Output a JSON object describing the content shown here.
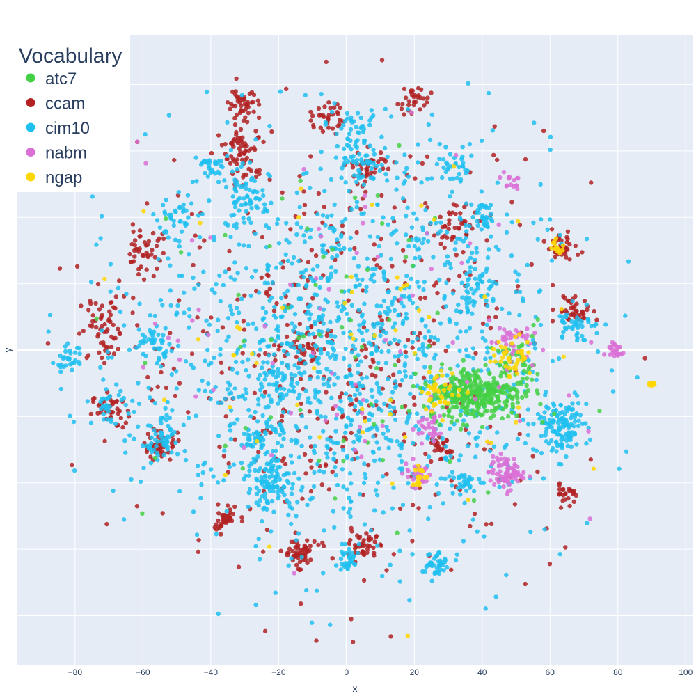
{
  "chart_data": {
    "type": "scatter",
    "title": "",
    "xlabel": "x",
    "ylabel": "y",
    "xlim": [
      -97,
      102
    ],
    "ylim": [
      -95,
      95
    ],
    "grid": true,
    "legend": {
      "title": "Vocabulary",
      "placement": "top-left"
    },
    "x_ticks": [
      -80,
      -60,
      -40,
      -20,
      0,
      20,
      40,
      60,
      80,
      100
    ],
    "x_tick_labels": [
      "−80",
      "−60",
      "−40",
      "−20",
      "0",
      "20",
      "40",
      "60",
      "80",
      "100"
    ],
    "y_ticks": [
      -80,
      -60,
      -40,
      -20,
      0,
      20,
      40,
      60,
      80
    ],
    "series": [
      {
        "name": "atc7",
        "color": "#44d044",
        "clusters": [
          {
            "cx": 38,
            "cy": -13,
            "sx": 7,
            "sy": 4,
            "n": 320
          },
          {
            "cx": 50,
            "cy": -4,
            "sx": 3,
            "sy": 3,
            "n": 40
          },
          {
            "cx": 0,
            "cy": 0,
            "sx": 30,
            "sy": 30,
            "n": 70
          }
        ]
      },
      {
        "name": "ccam",
        "color": "#b22222",
        "clusters": [
          {
            "cx": -71,
            "cy": 6,
            "sx": 4,
            "sy": 5,
            "n": 60
          },
          {
            "cx": -70,
            "cy": -18,
            "sx": 2.5,
            "sy": 2.5,
            "n": 40
          },
          {
            "cx": -30,
            "cy": 60,
            "sx": 3,
            "sy": 5,
            "n": 70
          },
          {
            "cx": -30,
            "cy": 75,
            "sx": 2.5,
            "sy": 2.5,
            "n": 40
          },
          {
            "cx": -7,
            "cy": 70,
            "sx": 2.5,
            "sy": 2.5,
            "n": 30
          },
          {
            "cx": 20,
            "cy": 75,
            "sx": 2.5,
            "sy": 2.5,
            "n": 30
          },
          {
            "cx": 32,
            "cy": 38,
            "sx": 3,
            "sy": 3,
            "n": 40
          },
          {
            "cx": 63,
            "cy": 31,
            "sx": 2,
            "sy": 2,
            "n": 40
          },
          {
            "cx": 67,
            "cy": 12,
            "sx": 2.5,
            "sy": 2.5,
            "n": 40
          },
          {
            "cx": -14,
            "cy": -61,
            "sx": 2.5,
            "sy": 2,
            "n": 60
          },
          {
            "cx": -36,
            "cy": -51,
            "sx": 2,
            "sy": 2,
            "n": 40
          },
          {
            "cx": 5,
            "cy": -59,
            "sx": 2,
            "sy": 2,
            "n": 40
          },
          {
            "cx": 65,
            "cy": -43,
            "sx": 1.5,
            "sy": 1.5,
            "n": 25
          },
          {
            "cx": -55,
            "cy": -29,
            "sx": 2.5,
            "sy": 2.5,
            "n": 40
          },
          {
            "cx": -13,
            "cy": -1,
            "sx": 3,
            "sy": 3,
            "n": 40
          },
          {
            "cx": 27,
            "cy": -30,
            "sx": 2,
            "sy": 2,
            "n": 30
          },
          {
            "cx": -60,
            "cy": 30,
            "sx": 3,
            "sy": 3,
            "n": 40
          },
          {
            "cx": 6,
            "cy": 55,
            "sx": 3,
            "sy": 3,
            "n": 40
          },
          {
            "cx": 0,
            "cy": 0,
            "sx": 33,
            "sy": 33,
            "n": 450
          }
        ]
      },
      {
        "name": "cim10",
        "color": "#1ec0f0",
        "clusters": [
          {
            "cx": -82,
            "cy": -3,
            "sx": 2,
            "sy": 2,
            "n": 30
          },
          {
            "cx": -70,
            "cy": -17,
            "sx": 2.5,
            "sy": 2.5,
            "n": 30
          },
          {
            "cx": -57,
            "cy": 2,
            "sx": 3,
            "sy": 3,
            "n": 40
          },
          {
            "cx": -55,
            "cy": -28,
            "sx": 3,
            "sy": 3,
            "n": 50
          },
          {
            "cx": -50,
            "cy": 40,
            "sx": 3,
            "sy": 3,
            "n": 30
          },
          {
            "cx": -40,
            "cy": 55,
            "sx": 2.5,
            "sy": 2.5,
            "n": 30
          },
          {
            "cx": -30,
            "cy": 45,
            "sx": 3,
            "sy": 4,
            "n": 60
          },
          {
            "cx": -22,
            "cy": -40,
            "sx": 4,
            "sy": 4,
            "n": 100
          },
          {
            "cx": -25,
            "cy": -25,
            "sx": 3,
            "sy": 3,
            "n": 40
          },
          {
            "cx": -20,
            "cy": -9,
            "sx": 3,
            "sy": 3,
            "n": 40
          },
          {
            "cx": 3,
            "cy": 65,
            "sx": 3,
            "sy": 3,
            "n": 40
          },
          {
            "cx": 32,
            "cy": 55,
            "sx": 2.5,
            "sy": 2.5,
            "n": 30
          },
          {
            "cx": 40,
            "cy": 40,
            "sx": 2.5,
            "sy": 2.5,
            "n": 30
          },
          {
            "cx": 38,
            "cy": 20,
            "sx": 3,
            "sy": 3,
            "n": 40
          },
          {
            "cx": 63,
            "cy": -23,
            "sx": 4,
            "sy": 4,
            "n": 130
          },
          {
            "cx": 67,
            "cy": 8,
            "sx": 2.5,
            "sy": 2.5,
            "n": 40
          },
          {
            "cx": 26,
            "cy": -64,
            "sx": 2,
            "sy": 2,
            "n": 40
          },
          {
            "cx": 34,
            "cy": -40,
            "sx": 2.5,
            "sy": 2,
            "n": 30
          },
          {
            "cx": 0,
            "cy": -63,
            "sx": 2,
            "sy": 2,
            "n": 30
          },
          {
            "cx": 4,
            "cy": 55,
            "sx": 3,
            "sy": 3,
            "n": 40
          },
          {
            "cx": 0,
            "cy": 0,
            "sx": 30,
            "sy": 30,
            "n": 1300
          }
        ]
      },
      {
        "name": "nabm",
        "color": "#da70d6",
        "clusters": [
          {
            "cx": 47,
            "cy": -37,
            "sx": 2.5,
            "sy": 2.5,
            "n": 80
          },
          {
            "cx": 48,
            "cy": 3,
            "sx": 3,
            "sy": 3,
            "n": 40
          },
          {
            "cx": 79,
            "cy": 0,
            "sx": 1.5,
            "sy": 1.5,
            "n": 25
          },
          {
            "cx": 21,
            "cy": -37,
            "sx": 2,
            "sy": 2,
            "n": 25
          },
          {
            "cx": 24,
            "cy": -23,
            "sx": 2.5,
            "sy": 2.5,
            "n": 30
          },
          {
            "cx": 48,
            "cy": 51,
            "sx": 1.5,
            "sy": 1.5,
            "n": 15
          },
          {
            "cx": 0,
            "cy": 0,
            "sx": 30,
            "sy": 30,
            "n": 70
          }
        ]
      },
      {
        "name": "ngap",
        "color": "#ffd700",
        "clusters": [
          {
            "cx": 90,
            "cy": -10,
            "sx": 0.5,
            "sy": 0.5,
            "n": 12
          },
          {
            "cx": 62,
            "cy": 31,
            "sx": 1.2,
            "sy": 1.2,
            "n": 15
          },
          {
            "cx": 49,
            "cy": -2,
            "sx": 3,
            "sy": 3,
            "n": 40
          },
          {
            "cx": 28,
            "cy": -12,
            "sx": 3,
            "sy": 3,
            "n": 40
          },
          {
            "cx": 22,
            "cy": -38,
            "sx": 1.5,
            "sy": 1.5,
            "n": 15
          },
          {
            "cx": 0,
            "cy": 0,
            "sx": 30,
            "sy": 30,
            "n": 60
          }
        ]
      }
    ]
  }
}
